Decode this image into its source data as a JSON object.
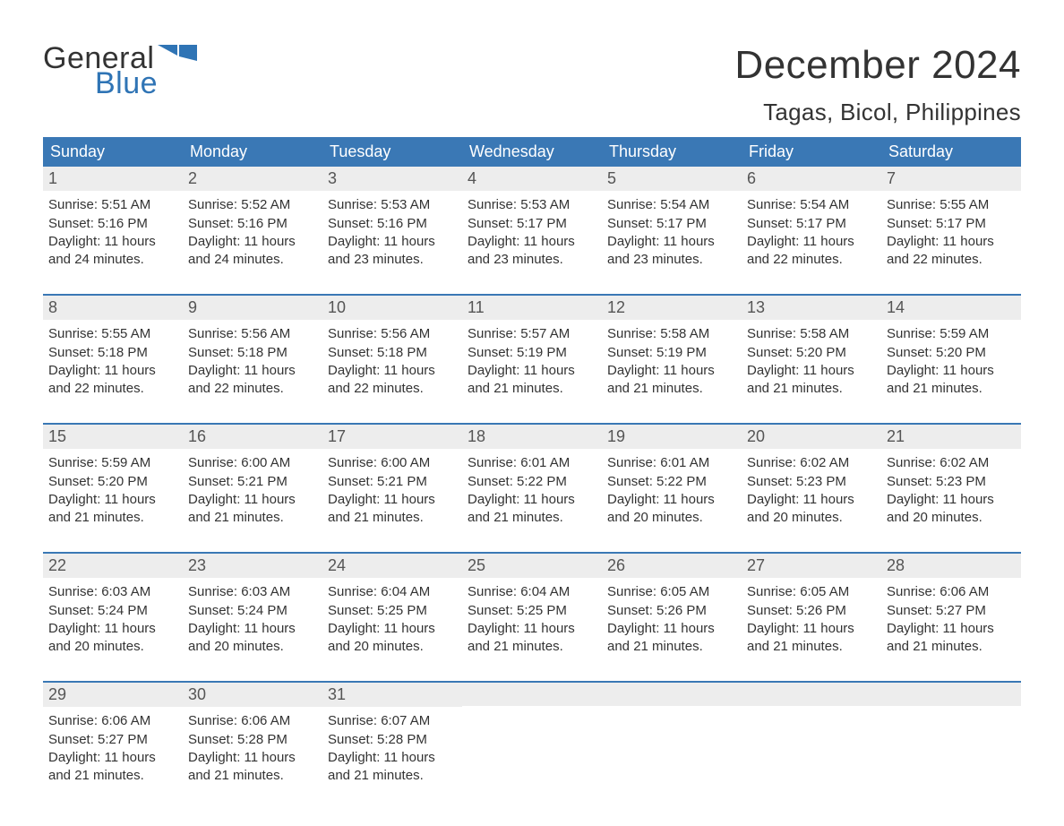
{
  "logo": {
    "text1": "General",
    "text2": "Blue",
    "accent_color": "#2f74b5"
  },
  "title": "December 2024",
  "location": "Tagas, Bicol, Philippines",
  "header_bg": "#3a78b5",
  "daynum_bg": "#ededed",
  "text_color": "#333333",
  "days_of_week": [
    "Sunday",
    "Monday",
    "Tuesday",
    "Wednesday",
    "Thursday",
    "Friday",
    "Saturday"
  ],
  "weeks": [
    [
      {
        "n": "1",
        "sunrise": "Sunrise: 5:51 AM",
        "sunset": "Sunset: 5:16 PM",
        "d1": "Daylight: 11 hours",
        "d2": "and 24 minutes."
      },
      {
        "n": "2",
        "sunrise": "Sunrise: 5:52 AM",
        "sunset": "Sunset: 5:16 PM",
        "d1": "Daylight: 11 hours",
        "d2": "and 24 minutes."
      },
      {
        "n": "3",
        "sunrise": "Sunrise: 5:53 AM",
        "sunset": "Sunset: 5:16 PM",
        "d1": "Daylight: 11 hours",
        "d2": "and 23 minutes."
      },
      {
        "n": "4",
        "sunrise": "Sunrise: 5:53 AM",
        "sunset": "Sunset: 5:17 PM",
        "d1": "Daylight: 11 hours",
        "d2": "and 23 minutes."
      },
      {
        "n": "5",
        "sunrise": "Sunrise: 5:54 AM",
        "sunset": "Sunset: 5:17 PM",
        "d1": "Daylight: 11 hours",
        "d2": "and 23 minutes."
      },
      {
        "n": "6",
        "sunrise": "Sunrise: 5:54 AM",
        "sunset": "Sunset: 5:17 PM",
        "d1": "Daylight: 11 hours",
        "d2": "and 22 minutes."
      },
      {
        "n": "7",
        "sunrise": "Sunrise: 5:55 AM",
        "sunset": "Sunset: 5:17 PM",
        "d1": "Daylight: 11 hours",
        "d2": "and 22 minutes."
      }
    ],
    [
      {
        "n": "8",
        "sunrise": "Sunrise: 5:55 AM",
        "sunset": "Sunset: 5:18 PM",
        "d1": "Daylight: 11 hours",
        "d2": "and 22 minutes."
      },
      {
        "n": "9",
        "sunrise": "Sunrise: 5:56 AM",
        "sunset": "Sunset: 5:18 PM",
        "d1": "Daylight: 11 hours",
        "d2": "and 22 minutes."
      },
      {
        "n": "10",
        "sunrise": "Sunrise: 5:56 AM",
        "sunset": "Sunset: 5:18 PM",
        "d1": "Daylight: 11 hours",
        "d2": "and 22 minutes."
      },
      {
        "n": "11",
        "sunrise": "Sunrise: 5:57 AM",
        "sunset": "Sunset: 5:19 PM",
        "d1": "Daylight: 11 hours",
        "d2": "and 21 minutes."
      },
      {
        "n": "12",
        "sunrise": "Sunrise: 5:58 AM",
        "sunset": "Sunset: 5:19 PM",
        "d1": "Daylight: 11 hours",
        "d2": "and 21 minutes."
      },
      {
        "n": "13",
        "sunrise": "Sunrise: 5:58 AM",
        "sunset": "Sunset: 5:20 PM",
        "d1": "Daylight: 11 hours",
        "d2": "and 21 minutes."
      },
      {
        "n": "14",
        "sunrise": "Sunrise: 5:59 AM",
        "sunset": "Sunset: 5:20 PM",
        "d1": "Daylight: 11 hours",
        "d2": "and 21 minutes."
      }
    ],
    [
      {
        "n": "15",
        "sunrise": "Sunrise: 5:59 AM",
        "sunset": "Sunset: 5:20 PM",
        "d1": "Daylight: 11 hours",
        "d2": "and 21 minutes."
      },
      {
        "n": "16",
        "sunrise": "Sunrise: 6:00 AM",
        "sunset": "Sunset: 5:21 PM",
        "d1": "Daylight: 11 hours",
        "d2": "and 21 minutes."
      },
      {
        "n": "17",
        "sunrise": "Sunrise: 6:00 AM",
        "sunset": "Sunset: 5:21 PM",
        "d1": "Daylight: 11 hours",
        "d2": "and 21 minutes."
      },
      {
        "n": "18",
        "sunrise": "Sunrise: 6:01 AM",
        "sunset": "Sunset: 5:22 PM",
        "d1": "Daylight: 11 hours",
        "d2": "and 21 minutes."
      },
      {
        "n": "19",
        "sunrise": "Sunrise: 6:01 AM",
        "sunset": "Sunset: 5:22 PM",
        "d1": "Daylight: 11 hours",
        "d2": "and 20 minutes."
      },
      {
        "n": "20",
        "sunrise": "Sunrise: 6:02 AM",
        "sunset": "Sunset: 5:23 PM",
        "d1": "Daylight: 11 hours",
        "d2": "and 20 minutes."
      },
      {
        "n": "21",
        "sunrise": "Sunrise: 6:02 AM",
        "sunset": "Sunset: 5:23 PM",
        "d1": "Daylight: 11 hours",
        "d2": "and 20 minutes."
      }
    ],
    [
      {
        "n": "22",
        "sunrise": "Sunrise: 6:03 AM",
        "sunset": "Sunset: 5:24 PM",
        "d1": "Daylight: 11 hours",
        "d2": "and 20 minutes."
      },
      {
        "n": "23",
        "sunrise": "Sunrise: 6:03 AM",
        "sunset": "Sunset: 5:24 PM",
        "d1": "Daylight: 11 hours",
        "d2": "and 20 minutes."
      },
      {
        "n": "24",
        "sunrise": "Sunrise: 6:04 AM",
        "sunset": "Sunset: 5:25 PM",
        "d1": "Daylight: 11 hours",
        "d2": "and 20 minutes."
      },
      {
        "n": "25",
        "sunrise": "Sunrise: 6:04 AM",
        "sunset": "Sunset: 5:25 PM",
        "d1": "Daylight: 11 hours",
        "d2": "and 21 minutes."
      },
      {
        "n": "26",
        "sunrise": "Sunrise: 6:05 AM",
        "sunset": "Sunset: 5:26 PM",
        "d1": "Daylight: 11 hours",
        "d2": "and 21 minutes."
      },
      {
        "n": "27",
        "sunrise": "Sunrise: 6:05 AM",
        "sunset": "Sunset: 5:26 PM",
        "d1": "Daylight: 11 hours",
        "d2": "and 21 minutes."
      },
      {
        "n": "28",
        "sunrise": "Sunrise: 6:06 AM",
        "sunset": "Sunset: 5:27 PM",
        "d1": "Daylight: 11 hours",
        "d2": "and 21 minutes."
      }
    ],
    [
      {
        "n": "29",
        "sunrise": "Sunrise: 6:06 AM",
        "sunset": "Sunset: 5:27 PM",
        "d1": "Daylight: 11 hours",
        "d2": "and 21 minutes."
      },
      {
        "n": "30",
        "sunrise": "Sunrise: 6:06 AM",
        "sunset": "Sunset: 5:28 PM",
        "d1": "Daylight: 11 hours",
        "d2": "and 21 minutes."
      },
      {
        "n": "31",
        "sunrise": "Sunrise: 6:07 AM",
        "sunset": "Sunset: 5:28 PM",
        "d1": "Daylight: 11 hours",
        "d2": "and 21 minutes."
      },
      null,
      null,
      null,
      null
    ]
  ]
}
